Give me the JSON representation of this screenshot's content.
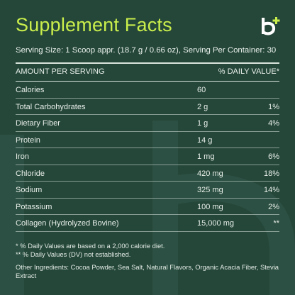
{
  "title": "Supplement Facts",
  "serving": "Serving Size: 1 Scoop appr. (18.7 g / 0.66 oz), Serving Per Container: 30",
  "header": {
    "amount": "AMOUNT PER SERVING",
    "dv": "% DAILY VALUE*"
  },
  "rows": [
    {
      "name": "Calories",
      "amount": "60",
      "dv": ""
    },
    {
      "name": "Total Carbohydrates",
      "amount": "2 g",
      "dv": "1%"
    },
    {
      "name": "Dietary Fiber",
      "amount": "1 g",
      "dv": "4%"
    },
    {
      "name": "Protein",
      "amount": "14 g",
      "dv": ""
    },
    {
      "name": "Iron",
      "amount": "1 mg",
      "dv": "6%"
    },
    {
      "name": "Chloride",
      "amount": "420 mg",
      "dv": "18%"
    },
    {
      "name": "Sodium",
      "amount": "325 mg",
      "dv": "14%"
    },
    {
      "name": "Potassium",
      "amount": "100 mg",
      "dv": "2%"
    },
    {
      "name": "Collagen (Hydrolyzed Bovine)",
      "amount": "15,000 mg",
      "dv": "**"
    }
  ],
  "footnotes": {
    "dv_note": "* % Daily Values are based on a 2,000 calorie diet.",
    "not_established": "** % Daily Values (DV) not established.",
    "ingredients": "Other Ingredients: Cocoa Powder, Sea Salt, Natural Flavors, Organic Acacia Fiber, Stevia Extract"
  },
  "colors": {
    "background": "#25473a",
    "accent": "#c9ee4b",
    "text": "#e8efe9"
  },
  "logo_icon": "brand-logo-b-plus-icon"
}
